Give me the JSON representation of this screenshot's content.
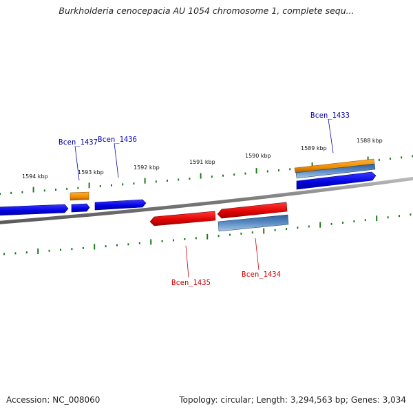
{
  "title": "Burkholderia cenocepacia AU 1054 chromosome 1, complete sequ...",
  "footer": {
    "accession": "Accession: NC_008060",
    "summary": "Topology: circular; Length: 3,294,563 bp; Genes: 3,034"
  },
  "colors": {
    "backbone": "#888888",
    "forward_cds": "#0000ee",
    "reverse_cds": "#ee0000",
    "gene_feature": "#4f7fb5",
    "rna_feature": "#f08c00",
    "tick": "#1a7a1a",
    "label_forward": "#0000aa",
    "label_reverse": "#cc0000"
  },
  "ticks": [
    {
      "label": "1594 kbp"
    },
    {
      "label": "1593 kbp"
    },
    {
      "label": "1592 kbp"
    },
    {
      "label": "1591 kbp"
    },
    {
      "label": "1590 kbp"
    },
    {
      "label": "1589 kbp"
    },
    {
      "label": "1588 kbp"
    }
  ],
  "gene_labels": [
    {
      "name": "Bcen_1437",
      "strand": "forward"
    },
    {
      "name": "Bcen_1436",
      "strand": "forward"
    },
    {
      "name": "Bcen_1433",
      "strand": "forward"
    },
    {
      "name": "Bcen_1435",
      "strand": "reverse"
    },
    {
      "name": "Bcen_1434",
      "strand": "reverse"
    }
  ]
}
